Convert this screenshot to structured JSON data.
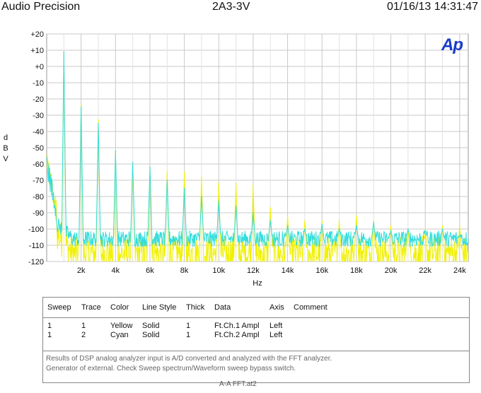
{
  "header": {
    "left": "Audio Precision",
    "center": "2A3-3V",
    "right": "01/16/13 14:31:47"
  },
  "logo": {
    "text": "Ap",
    "color": "#1a3cc8"
  },
  "chart_data": {
    "type": "line",
    "ylabel": "dBV",
    "xlabel": "Hz",
    "xlim": [
      0,
      24500
    ],
    "ylim": [
      -120,
      20
    ],
    "grid": true,
    "y_ticks": [
      "+20",
      "+10",
      "+0",
      "-10",
      "-20",
      "-30",
      "-40",
      "-50",
      "-60",
      "-70",
      "-80",
      "-90",
      "-100",
      "-110",
      "-120"
    ],
    "x_ticks": [
      "2k",
      "4k",
      "6k",
      "8k",
      "10k",
      "12k",
      "14k",
      "16k",
      "18k",
      "20k",
      "22k",
      "24k"
    ],
    "series": [
      {
        "name": "Ft.Ch.1 Ampl",
        "color": "#f0f000",
        "noise_floor": -115,
        "peaks": [
          [
            1000,
            9
          ],
          [
            2000,
            -24
          ],
          [
            3000,
            -33
          ],
          [
            4000,
            -53
          ],
          [
            5000,
            -60
          ],
          [
            6000,
            -63
          ],
          [
            7000,
            -65
          ],
          [
            8000,
            -65
          ],
          [
            9000,
            -68
          ],
          [
            10000,
            -72
          ],
          [
            11000,
            -72
          ],
          [
            12000,
            -73
          ],
          [
            13000,
            -87
          ],
          [
            14000,
            -92
          ],
          [
            15000,
            -95
          ],
          [
            16000,
            -95
          ],
          [
            17000,
            -95
          ],
          [
            18000,
            -92
          ],
          [
            19000,
            -95
          ],
          [
            20000,
            -98
          ],
          [
            21000,
            -100
          ],
          [
            22000,
            -100
          ],
          [
            23000,
            -98
          ],
          [
            24000,
            -98
          ]
        ]
      },
      {
        "name": "Ft.Ch.2 Ampl",
        "color": "#33dddd",
        "noise_floor": -106,
        "peaks": [
          [
            1000,
            9
          ],
          [
            2000,
            -25
          ],
          [
            3000,
            -35
          ],
          [
            4000,
            -52
          ],
          [
            5000,
            -59
          ],
          [
            6000,
            -62
          ],
          [
            7000,
            -70
          ],
          [
            8000,
            -75
          ],
          [
            9000,
            -80
          ],
          [
            10000,
            -83
          ],
          [
            11000,
            -86
          ],
          [
            12000,
            -90
          ],
          [
            13000,
            -95
          ],
          [
            14000,
            -98
          ],
          [
            15000,
            -100
          ],
          [
            16000,
            -97
          ],
          [
            17000,
            -100
          ],
          [
            18000,
            -98
          ],
          [
            19000,
            -96
          ],
          [
            20000,
            -101
          ],
          [
            21000,
            -100
          ],
          [
            22000,
            -101
          ],
          [
            23000,
            -100
          ],
          [
            24000,
            -104
          ]
        ]
      }
    ]
  },
  "legend": {
    "headers": [
      "Sweep",
      "Trace",
      "Color",
      "Line Style",
      "Thick",
      "Data",
      "Axis",
      "Comment"
    ],
    "rows": [
      [
        "1",
        "1",
        "Yellow",
        "Solid",
        "1",
        "Ft.Ch.1 Ampl",
        "Left",
        ""
      ],
      [
        "1",
        "2",
        "Cyan",
        "Solid",
        "1",
        "Ft.Ch.2 Ampl",
        "Left",
        ""
      ]
    ]
  },
  "footnote": {
    "line1": "Results of DSP analog analyzer input is A/D converted and analyzed with the FFT analyzer.",
    "line2": "Generator of external. Check Sweep spectrum/Waveform sweep bypass switch."
  },
  "filename": "A-A FFT.at2"
}
